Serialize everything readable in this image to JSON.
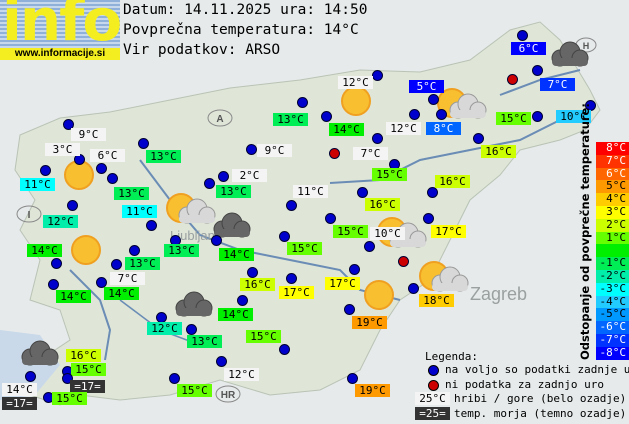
{
  "logo": {
    "text": "info",
    "url": "www.informacije.si"
  },
  "header": {
    "date_line": "Datum: 14.11.2025 ura: 14:50",
    "avg_line": "Povprečna temperatura: 14°C",
    "source_line": "Vir podatkov: ARSO"
  },
  "average_temp": 14,
  "colors": {
    "station_dot": "#0000cc",
    "no_data_dot": "#cc0000",
    "mountain_bg": "#f4f4f4",
    "sea_bg": "#333333"
  },
  "map_labels": [
    "A",
    "I",
    "HR",
    "H",
    "Ljubljana",
    "Zagreb"
  ],
  "stations": [
    {
      "temp": "9°C",
      "kind": "mountain"
    },
    {
      "temp": "3°C",
      "kind": "mountain"
    },
    {
      "temp": "6°C",
      "kind": "mountain"
    },
    {
      "temp": "11°C",
      "kind": "normal"
    },
    {
      "temp": "13°C",
      "kind": "normal"
    },
    {
      "temp": "13°C",
      "kind": "normal"
    },
    {
      "temp": "13°C",
      "kind": "normal"
    },
    {
      "temp": "9°C",
      "kind": "mountain"
    },
    {
      "temp": "2°C",
      "kind": "mountain"
    },
    {
      "temp": "13°C",
      "kind": "normal"
    },
    {
      "temp": "11°C",
      "kind": "mountain"
    },
    {
      "temp": "12°C",
      "kind": "normal"
    },
    {
      "temp": "11°C",
      "kind": "normal"
    },
    {
      "temp": "6°C",
      "kind": "normal"
    },
    {
      "temp": "7°C",
      "kind": "normal"
    },
    {
      "temp": "10°C",
      "kind": "normal"
    },
    {
      "temp": "15°C",
      "kind": "normal"
    },
    {
      "temp": "12°C",
      "kind": "mountain"
    },
    {
      "temp": "5°C",
      "kind": "normal"
    },
    {
      "temp": "12°C",
      "kind": "mountain"
    },
    {
      "temp": "8°C",
      "kind": "normal"
    },
    {
      "temp": "14°C",
      "kind": "normal"
    },
    {
      "temp": "7°C",
      "kind": "mountain"
    },
    {
      "temp": "16°C",
      "kind": "normal"
    },
    {
      "temp": "15°C",
      "kind": "normal"
    },
    {
      "temp": "16°C",
      "kind": "normal"
    },
    {
      "temp": "16°C",
      "kind": "normal"
    },
    {
      "temp": "15°C",
      "kind": "normal"
    },
    {
      "temp": "17°C",
      "kind": "normal"
    },
    {
      "temp": "10°C",
      "kind": "mountain"
    },
    {
      "temp": "14°C",
      "kind": "normal"
    },
    {
      "temp": "13°C",
      "kind": "normal"
    },
    {
      "temp": "7°C",
      "kind": "mountain"
    },
    {
      "temp": "14°C",
      "kind": "normal"
    },
    {
      "temp": "14°C",
      "kind": "normal"
    },
    {
      "temp": "13°C",
      "kind": "normal"
    },
    {
      "temp": "14°C",
      "kind": "normal"
    },
    {
      "temp": "15°C",
      "kind": "normal"
    },
    {
      "temp": "16°C",
      "kind": "normal"
    },
    {
      "temp": "17°C",
      "kind": "normal"
    },
    {
      "temp": "17°C",
      "kind": "normal"
    },
    {
      "temp": "18°C",
      "kind": "normal"
    },
    {
      "temp": "19°C",
      "kind": "normal"
    },
    {
      "temp": "14°C",
      "kind": "normal"
    },
    {
      "temp": "12°C",
      "kind": "normal"
    },
    {
      "temp": "13°C",
      "kind": "normal"
    },
    {
      "temp": "15°C",
      "kind": "normal"
    },
    {
      "temp": "12°C",
      "kind": "mountain"
    },
    {
      "temp": "15°C",
      "kind": "normal"
    },
    {
      "temp": "19°C",
      "kind": "normal"
    },
    {
      "temp": "16°C",
      "kind": "normal"
    },
    {
      "temp": "15°C",
      "kind": "normal"
    },
    {
      "temp": "=17=",
      "kind": "sea"
    },
    {
      "temp": "14°C",
      "kind": "mountain"
    },
    {
      "temp": "=17=",
      "kind": "sea"
    },
    {
      "temp": "15°C",
      "kind": "normal"
    }
  ],
  "weather_icons": [
    "sun",
    "sun",
    "sun",
    "sun-cloud",
    "cloud",
    "sun-cloud",
    "cloud",
    "sun-cloud",
    "cloud",
    "sun",
    "sun-cloud",
    "cloud"
  ],
  "scale": {
    "title": "Odstopanje od povprečne temperature:",
    "rows": [
      {
        "label": "8°C",
        "color": "#ff0000",
        "text": "#ffffff"
      },
      {
        "label": "7°C",
        "color": "#ff3300",
        "text": "#ffffff"
      },
      {
        "label": "6°C",
        "color": "#ff6600",
        "text": "#ffffff"
      },
      {
        "label": "5°C",
        "color": "#ff9900",
        "text": "#000000"
      },
      {
        "label": "4°C",
        "color": "#ffcc00",
        "text": "#000000"
      },
      {
        "label": "3°C",
        "color": "#ffff00",
        "text": "#000000"
      },
      {
        "label": "2°C",
        "color": "#ccff00",
        "text": "#000000"
      },
      {
        "label": "1°C",
        "color": "#66ff00",
        "text": "#000000"
      },
      {
        "label": "",
        "color": "#00ee00",
        "text": "#000000"
      },
      {
        "label": "-1°C",
        "color": "#00ee55",
        "text": "#000000"
      },
      {
        "label": "-2°C",
        "color": "#00eeaa",
        "text": "#000000"
      },
      {
        "label": "-3°C",
        "color": "#00ffff",
        "text": "#000000"
      },
      {
        "label": "-4°C",
        "color": "#22ccff",
        "text": "#000000"
      },
      {
        "label": "-5°C",
        "color": "#0099ff",
        "text": "#000000"
      },
      {
        "label": "-6°C",
        "color": "#0066ff",
        "text": "#ffffff"
      },
      {
        "label": "-7°C",
        "color": "#0033ff",
        "text": "#ffffff"
      },
      {
        "label": "-8°C",
        "color": "#0000ff",
        "text": "#ffffff"
      }
    ]
  },
  "legend": {
    "title": "Legenda:",
    "blue_dot": "na voljo so podatki zadnje ure",
    "red_dot": "ni podatka za zadnjo uro",
    "mountain_sample": "25°C",
    "mountain_text": "hribi / gore (belo ozadje)",
    "sea_sample": "=25=",
    "sea_text": "temp. morja (temno ozadje)"
  }
}
